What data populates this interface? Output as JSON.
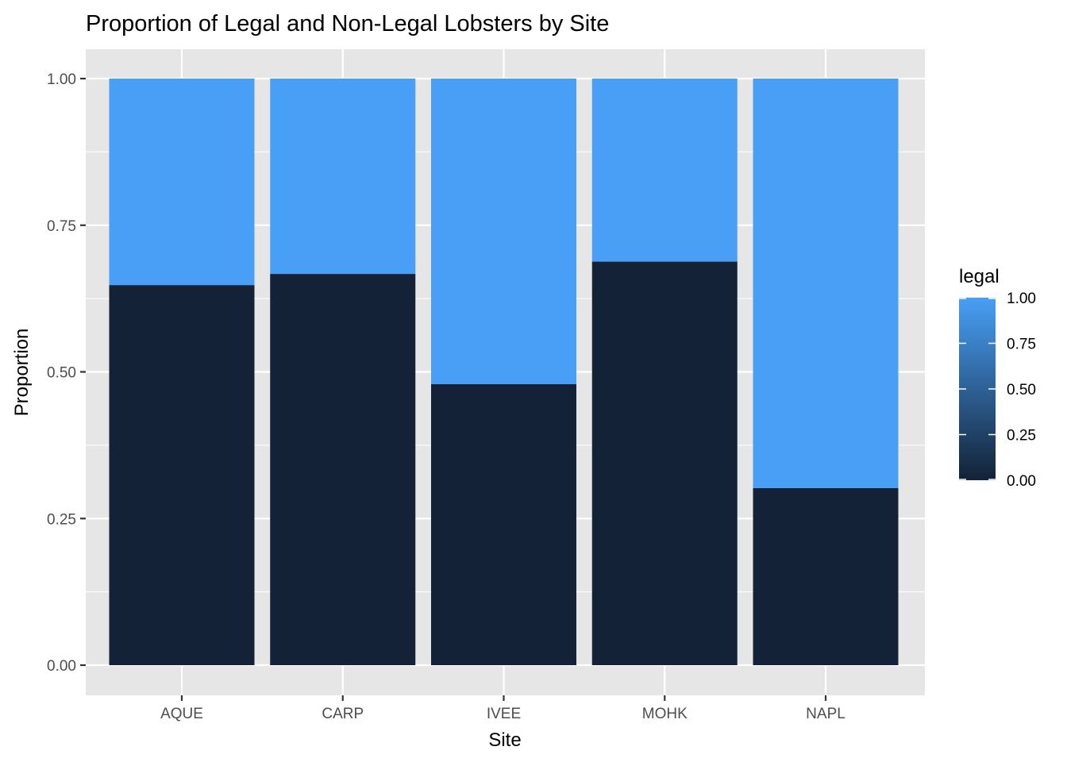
{
  "chart_data": {
    "type": "bar",
    "stacked": true,
    "title": "Proportion of Legal and Non-Legal Lobsters by Site",
    "xlabel": "Site",
    "ylabel": "Proportion",
    "categories": [
      "AQUE",
      "CARP",
      "IVEE",
      "MOHK",
      "NAPL"
    ],
    "series": [
      {
        "values": [
          0.648,
          0.667,
          0.479,
          0.688,
          0.302
        ],
        "color": "#132236",
        "legal": 0
      },
      {
        "values": [
          0.352,
          0.333,
          0.521,
          0.312,
          0.698
        ],
        "color": "#489FF5",
        "legal": 1
      }
    ],
    "ylim": [
      0,
      1
    ],
    "yticks": [
      0,
      0.25,
      0.5,
      0.75,
      1
    ],
    "ytick_labels": [
      "0.00",
      "0.25",
      "0.50",
      "0.75",
      "1.00"
    ],
    "grid": true,
    "legend": {
      "title": "legal",
      "placement": "right",
      "type": "colorbar",
      "range": [
        0,
        1
      ],
      "low_color": "#132236",
      "high_color": "#489FF5",
      "ticks": [
        0,
        0.25,
        0.5,
        0.75,
        1
      ],
      "tick_labels": [
        "0.00",
        "0.25",
        "0.50",
        "0.75",
        "1.00"
      ]
    },
    "panel_color": "#E6E6E6",
    "grid_color": "#FFFFFF"
  }
}
